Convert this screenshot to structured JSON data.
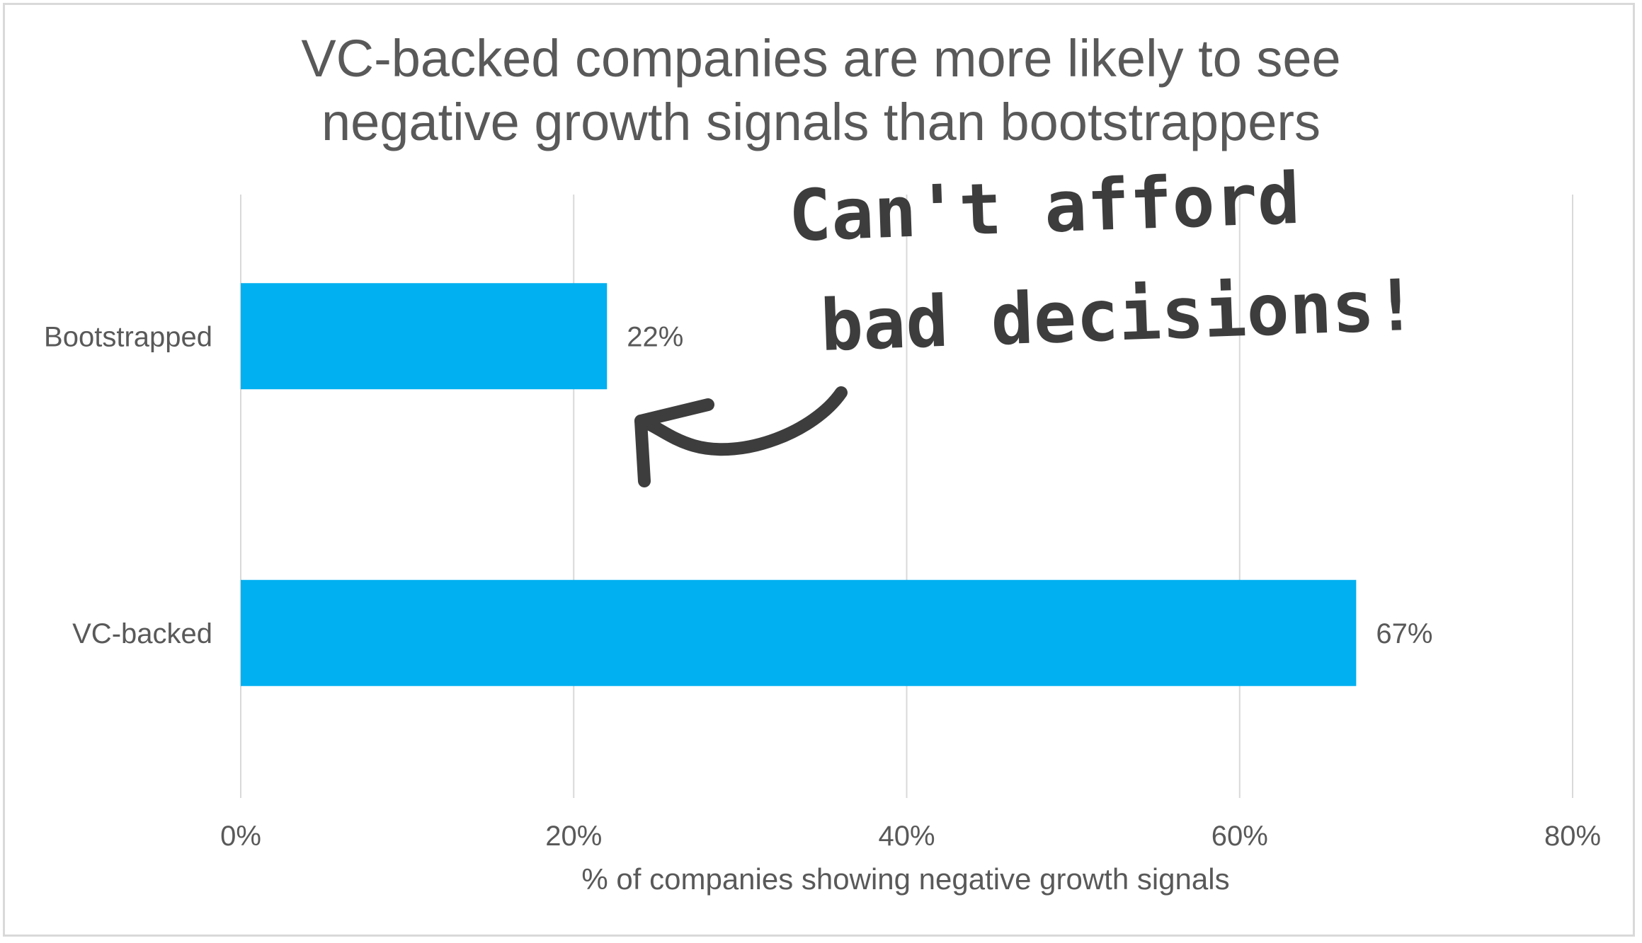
{
  "chart_data": {
    "type": "bar",
    "orientation": "horizontal",
    "title": "VC-backed companies are more likely to see\nnegative growth signals than bootstrappers",
    "categories": [
      "Bootstrapped",
      "VC-backed"
    ],
    "values": [
      22,
      67
    ],
    "data_labels": [
      "22%",
      "67%"
    ],
    "xlabel": "% of companies showing negative growth signals",
    "ylabel": "",
    "xlim": [
      0,
      80
    ],
    "xticks": [
      0,
      20,
      40,
      60,
      80
    ],
    "xtick_labels": [
      "0%",
      "20%",
      "40%",
      "60%",
      "80%"
    ],
    "grid": "vertical",
    "bar_color": "#00B0F0",
    "annotation": {
      "lines": [
        "Can't afford",
        "bad decisions!"
      ],
      "points_to": "Bootstrapped"
    }
  },
  "colors": {
    "text": "#595959",
    "grid": "#d9d9d9",
    "annotation": "#3d3d3d"
  }
}
